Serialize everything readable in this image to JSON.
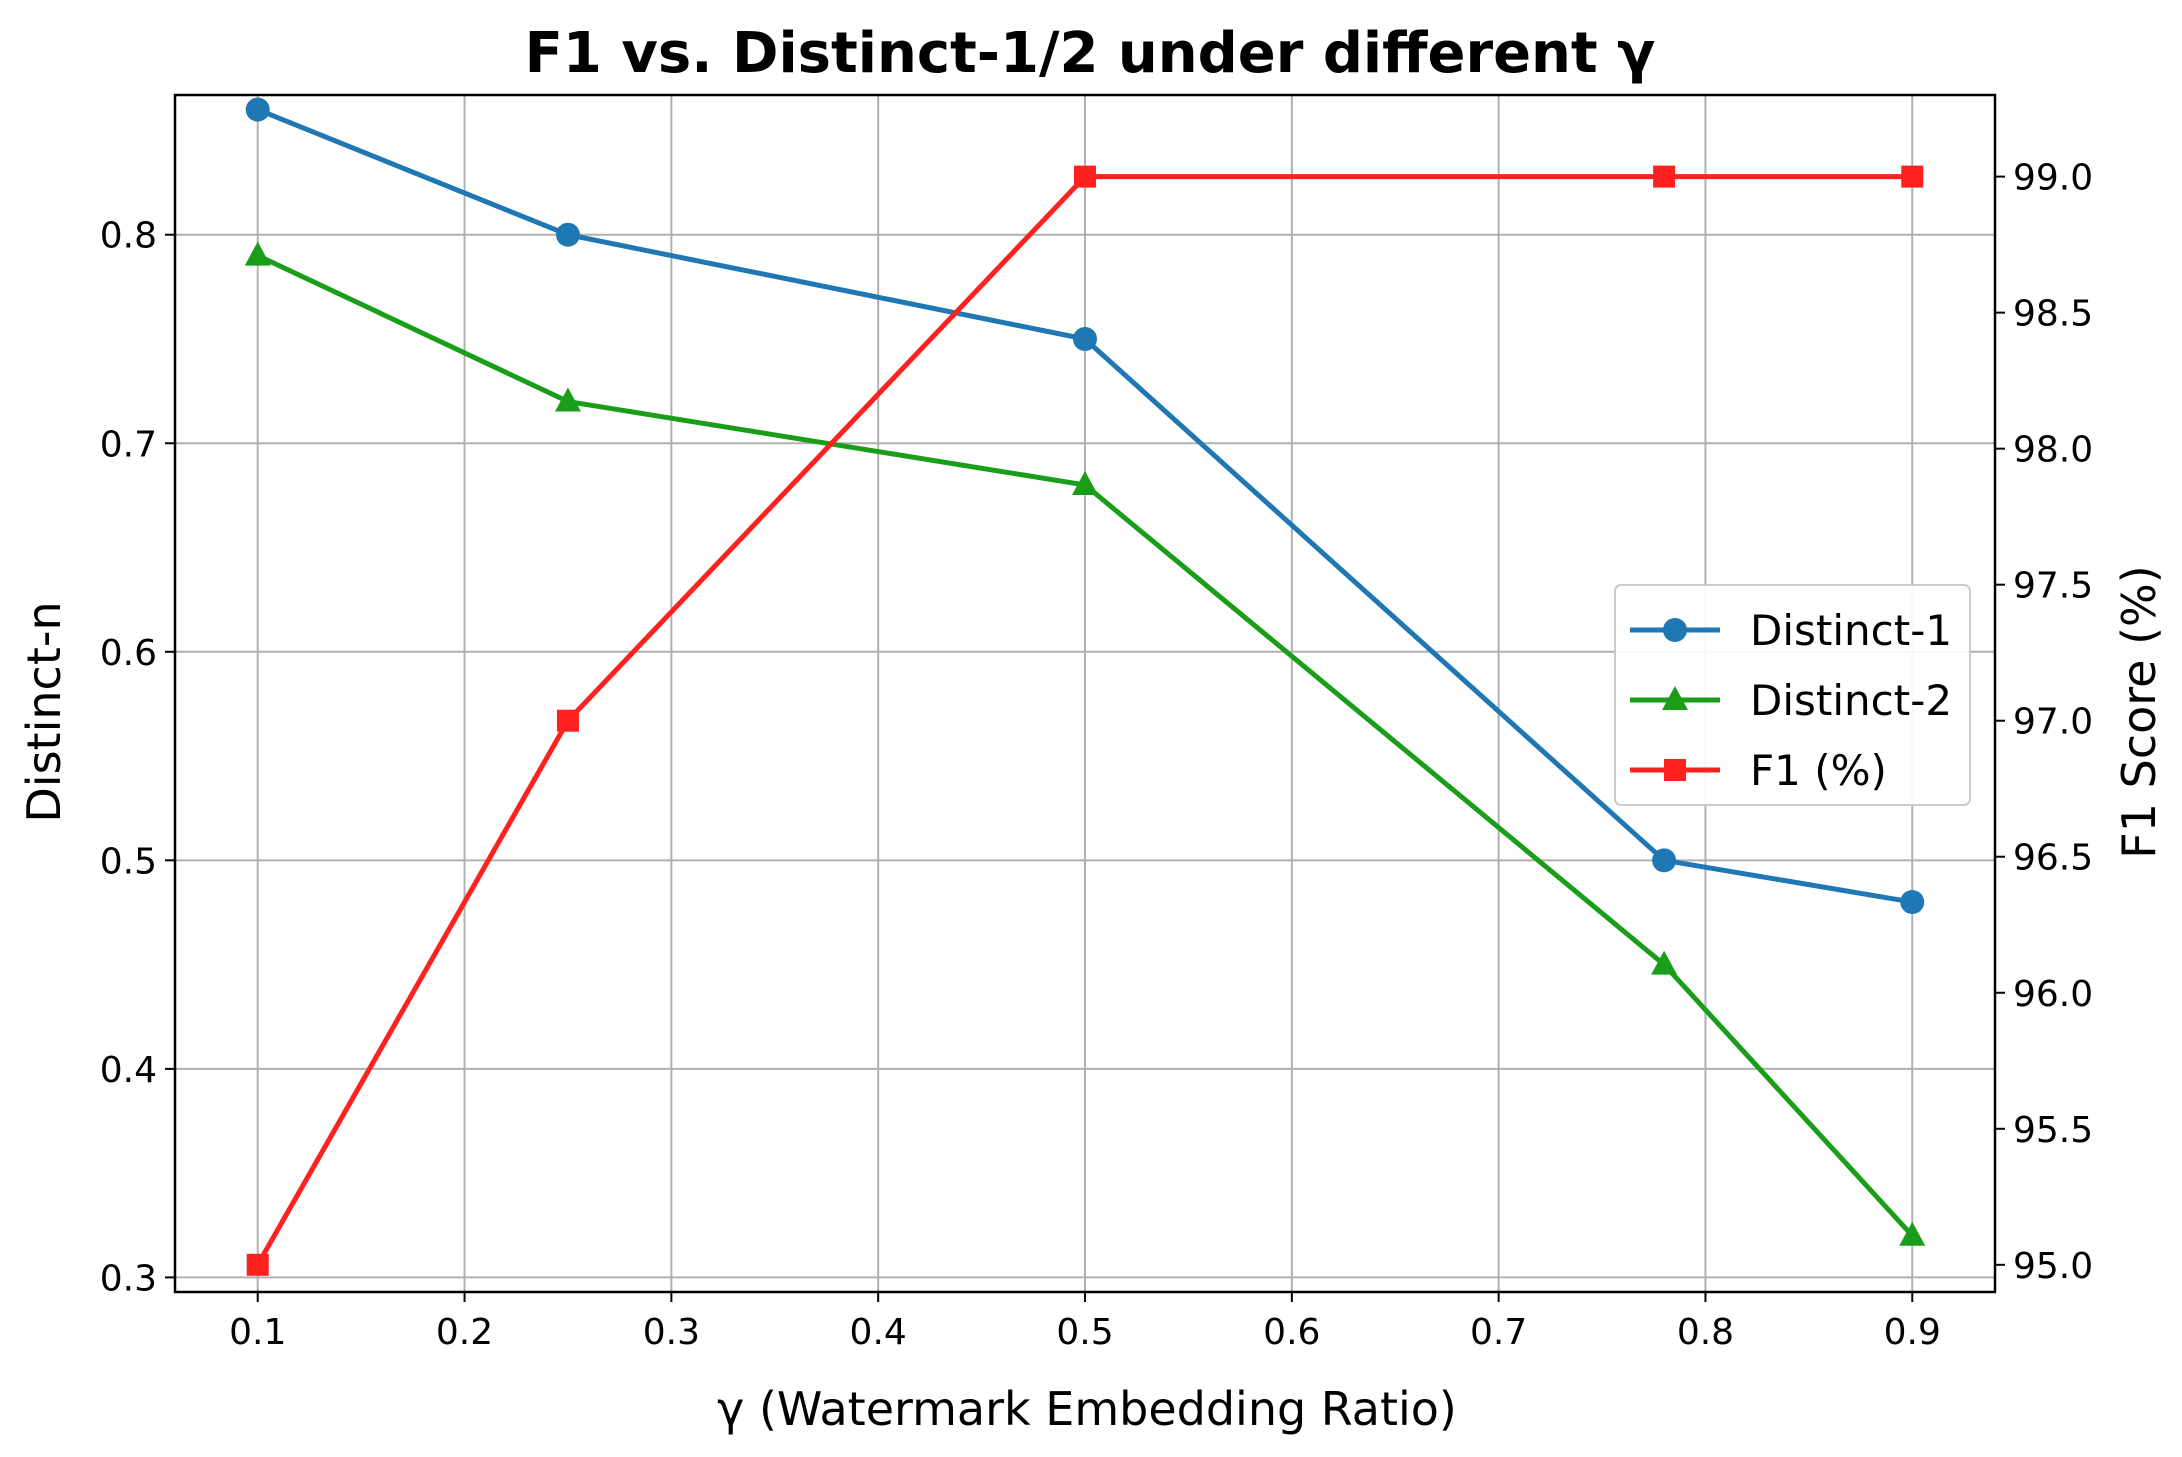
{
  "chart_data": {
    "type": "line",
    "title": "F1 vs. Distinct-1/2 under different γ",
    "xlabel": "γ (Watermark Embedding Ratio)",
    "ylabel_left": "Distinct-n",
    "ylabel_right": "F1 Score (%)",
    "x": [
      0.1,
      0.25,
      0.5,
      0.78,
      0.9
    ],
    "x_ticks": [
      "0.1",
      "0.2",
      "0.3",
      "0.4",
      "0.5",
      "0.6",
      "0.7",
      "0.8",
      "0.9"
    ],
    "x_tick_values": [
      0.1,
      0.2,
      0.3,
      0.4,
      0.5,
      0.6,
      0.7,
      0.8,
      0.9
    ],
    "xlim": [
      0.06,
      0.94
    ],
    "y_left_ticks": [
      "0.3",
      "0.4",
      "0.5",
      "0.6",
      "0.7",
      "0.8"
    ],
    "y_left_tick_values": [
      0.3,
      0.4,
      0.5,
      0.6,
      0.7,
      0.8
    ],
    "ylim_left": [
      0.293,
      0.867
    ],
    "y_right_ticks": [
      "95.0",
      "95.5",
      "96.0",
      "96.5",
      "97.0",
      "97.5",
      "98.0",
      "98.5",
      "99.0"
    ],
    "y_right_tick_values": [
      95.0,
      95.5,
      96.0,
      96.5,
      97.0,
      97.5,
      98.0,
      98.5,
      99.0
    ],
    "ylim_right": [
      94.9,
      99.3
    ],
    "grid": true,
    "legend_position": "center-right",
    "series": [
      {
        "name": "Distinct-1",
        "axis": "left",
        "color": "#1f77b4",
        "marker": "circle",
        "values": [
          0.86,
          0.8,
          0.75,
          0.5,
          0.48
        ]
      },
      {
        "name": "Distinct-2",
        "axis": "left",
        "color": "#1a9e1a",
        "marker": "triangle",
        "values": [
          0.79,
          0.72,
          0.68,
          0.45,
          0.32
        ]
      },
      {
        "name": "F1 (%)",
        "axis": "right",
        "color": "#ff2020",
        "marker": "square",
        "values": [
          95.0,
          97.0,
          99.0,
          99.0,
          99.0
        ]
      }
    ]
  }
}
